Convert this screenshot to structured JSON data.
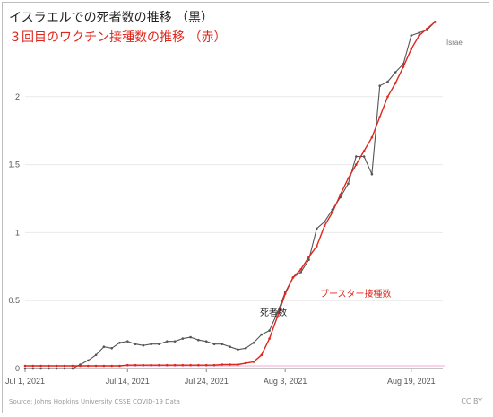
{
  "titles": {
    "deaths_title": "イスラエルでの死者数の推移 （黒）",
    "booster_title": "３回目のワクチン接種数の推移 （赤）"
  },
  "footer": {
    "source": "Source: Johns Hopkins University CSSE COVID-19 Data",
    "license": "CC BY"
  },
  "colors": {
    "deaths": "#555555",
    "booster": "#e0251b",
    "baseline_pink": "#f4a7d3",
    "grid": "#e9e9e9",
    "axis_text": "#555555"
  },
  "chart_data": {
    "type": "line",
    "xlim": [
      "2021-07-01",
      "2021-08-23"
    ],
    "ylim": [
      0,
      2.5
    ],
    "yticks": [
      0,
      0.5,
      1,
      1.5,
      2
    ],
    "ytick_labels": [
      "0",
      "0.5",
      "1",
      "1.5",
      "2"
    ],
    "xticks": [
      "2021-07-01",
      "2021-07-14",
      "2021-07-24",
      "2021-08-03",
      "2021-08-19"
    ],
    "xtick_labels": [
      "Jul 1, 2021",
      "Jul 14, 2021",
      "Jul 24, 2021",
      "Aug 3, 2021",
      "Aug 19, 2021"
    ],
    "grid": true,
    "annotations": [
      {
        "text": "死者数",
        "series": "deaths"
      },
      {
        "text": "ブースター接種数",
        "series": "booster"
      },
      {
        "text": "Israel",
        "series": "deaths"
      }
    ],
    "series": [
      {
        "id": "deaths",
        "x": [
          "2021-07-01",
          "2021-07-02",
          "2021-07-03",
          "2021-07-04",
          "2021-07-05",
          "2021-07-06",
          "2021-07-07",
          "2021-07-08",
          "2021-07-09",
          "2021-07-10",
          "2021-07-11",
          "2021-07-12",
          "2021-07-13",
          "2021-07-14",
          "2021-07-15",
          "2021-07-16",
          "2021-07-17",
          "2021-07-18",
          "2021-07-19",
          "2021-07-20",
          "2021-07-21",
          "2021-07-22",
          "2021-07-23",
          "2021-07-24",
          "2021-07-25",
          "2021-07-26",
          "2021-07-27",
          "2021-07-28",
          "2021-07-29",
          "2021-07-30",
          "2021-07-31",
          "2021-08-01",
          "2021-08-02",
          "2021-08-03",
          "2021-08-04",
          "2021-08-05",
          "2021-08-06",
          "2021-08-07",
          "2021-08-08",
          "2021-08-09",
          "2021-08-10",
          "2021-08-11",
          "2021-08-12",
          "2021-08-13",
          "2021-08-14",
          "2021-08-15",
          "2021-08-16",
          "2021-08-17",
          "2021-08-18",
          "2021-08-19",
          "2021-08-20",
          "2021-08-21",
          "2021-08-22"
        ],
        "values": [
          0.0,
          0.0,
          0.0,
          0.0,
          0.0,
          0.0,
          0.0,
          0.03,
          0.06,
          0.1,
          0.16,
          0.15,
          0.19,
          0.2,
          0.18,
          0.17,
          0.18,
          0.18,
          0.2,
          0.2,
          0.22,
          0.23,
          0.21,
          0.2,
          0.18,
          0.18,
          0.16,
          0.14,
          0.15,
          0.19,
          0.25,
          0.28,
          0.41,
          0.56,
          0.67,
          0.71,
          0.8,
          1.03,
          1.08,
          1.17,
          1.26,
          1.36,
          1.56,
          1.56,
          1.43,
          2.08,
          2.11,
          2.18,
          2.24,
          2.45,
          2.47,
          2.49,
          2.55
        ]
      },
      {
        "id": "booster",
        "x": [
          "2021-07-01",
          "2021-07-02",
          "2021-07-03",
          "2021-07-04",
          "2021-07-05",
          "2021-07-06",
          "2021-07-07",
          "2021-07-08",
          "2021-07-09",
          "2021-07-10",
          "2021-07-11",
          "2021-07-12",
          "2021-07-13",
          "2021-07-14",
          "2021-07-15",
          "2021-07-16",
          "2021-07-17",
          "2021-07-18",
          "2021-07-19",
          "2021-07-20",
          "2021-07-21",
          "2021-07-22",
          "2021-07-23",
          "2021-07-24",
          "2021-07-25",
          "2021-07-26",
          "2021-07-27",
          "2021-07-28",
          "2021-07-29",
          "2021-07-30",
          "2021-07-31",
          "2021-08-01",
          "2021-08-02",
          "2021-08-03",
          "2021-08-04",
          "2021-08-05",
          "2021-08-06",
          "2021-08-07",
          "2021-08-08",
          "2021-08-09",
          "2021-08-10",
          "2021-08-11",
          "2021-08-12",
          "2021-08-13",
          "2021-08-14",
          "2021-08-15",
          "2021-08-16",
          "2021-08-17",
          "2021-08-18",
          "2021-08-19",
          "2021-08-20",
          "2021-08-21",
          "2021-08-22"
        ],
        "values": [
          0.02,
          0.02,
          0.02,
          0.02,
          0.02,
          0.02,
          0.02,
          0.02,
          0.02,
          0.02,
          0.02,
          0.02,
          0.02,
          0.025,
          0.025,
          0.025,
          0.025,
          0.025,
          0.025,
          0.025,
          0.025,
          0.025,
          0.025,
          0.025,
          0.025,
          0.03,
          0.03,
          0.03,
          0.04,
          0.05,
          0.1,
          0.22,
          0.38,
          0.55,
          0.67,
          0.73,
          0.82,
          0.9,
          1.05,
          1.15,
          1.28,
          1.4,
          1.5,
          1.6,
          1.7,
          1.85,
          2.0,
          2.1,
          2.22,
          2.35,
          2.45,
          2.5,
          2.55
        ]
      }
    ]
  }
}
